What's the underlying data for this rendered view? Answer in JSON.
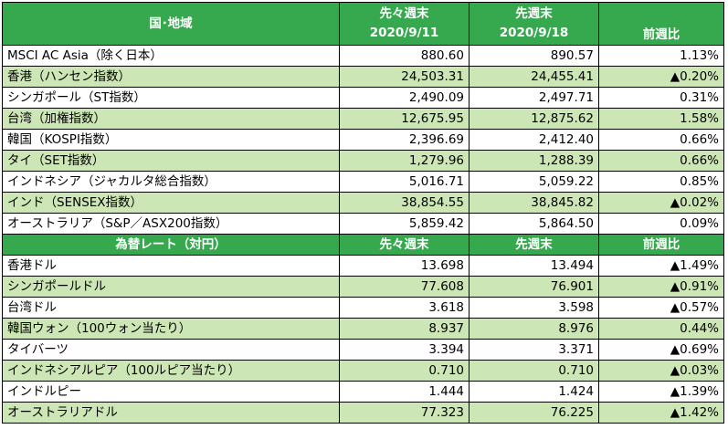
{
  "stock_section": {
    "header": {
      "name": "国･地域",
      "prev_week_label": "先々週末",
      "prev_week_date": "2020/9/11",
      "this_week_label": "先週末",
      "this_week_date": "2020/9/18",
      "change_label": "前週比"
    },
    "rows": [
      {
        "name": "MSCI AC Asia（除く日本）",
        "prev": "880.60",
        "curr": "890.57",
        "change": "1.13%",
        "rise": false,
        "shaded": false
      },
      {
        "name": "香港（ハンセン指数）",
        "prev": "24,503.31",
        "curr": "24,455.41",
        "change": "▲0.20%",
        "rise": true,
        "shaded": true
      },
      {
        "name": "シンガポール（ST指数）",
        "prev": "2,490.09",
        "curr": "2,497.71",
        "change": "0.31%",
        "rise": false,
        "shaded": false
      },
      {
        "name": "台湾（加権指数）",
        "prev": "12,675.95",
        "curr": "12,875.62",
        "change": "1.58%",
        "rise": false,
        "shaded": true
      },
      {
        "name": "韓国（KOSPI指数）",
        "prev": "2,396.69",
        "curr": "2,412.40",
        "change": "0.66%",
        "rise": false,
        "shaded": false
      },
      {
        "name": "タイ（SET指数）",
        "prev": "1,279.96",
        "curr": "1,288.39",
        "change": "0.66%",
        "rise": false,
        "shaded": true
      },
      {
        "name": "インドネシア（ジャカルタ総合指数）",
        "prev": "5,016.71",
        "curr": "5,059.22",
        "change": "0.85%",
        "rise": false,
        "shaded": false
      },
      {
        "name": "インド（SENSEX指数）",
        "prev": "38,854.55",
        "curr": "38,845.82",
        "change": "▲0.02%",
        "rise": true,
        "shaded": true
      },
      {
        "name": "オーストラリア（S&P／ASX200指数）",
        "prev": "5,859.42",
        "curr": "5,864.50",
        "change": "0.09%",
        "rise": false,
        "shaded": false
      }
    ]
  },
  "fx_section": {
    "header": {
      "name": "為替レート（対円）",
      "prev_week_label": "先々週末",
      "this_week_label": "先週末",
      "change_label": "前週比"
    },
    "rows": [
      {
        "name": "香港ドル",
        "prev": "13.698",
        "curr": "13.494",
        "change": "▲1.49%",
        "rise": true,
        "shaded": false
      },
      {
        "name": "シンガポールドル",
        "prev": "77.608",
        "curr": "76.901",
        "change": "▲0.91%",
        "rise": true,
        "shaded": true
      },
      {
        "name": "台湾ドル",
        "prev": "3.618",
        "curr": "3.598",
        "change": "▲0.57%",
        "rise": true,
        "shaded": false
      },
      {
        "name": "韓国ウォン（100ウォン当たり）",
        "prev": "8.937",
        "curr": "8.976",
        "change": "0.44%",
        "rise": false,
        "shaded": true
      },
      {
        "name": "タイバーツ",
        "prev": "3.394",
        "curr": "3.371",
        "change": "▲0.69%",
        "rise": true,
        "shaded": false
      },
      {
        "name": "インドネシアルピア（100ルピア当たり）",
        "prev": "0.710",
        "curr": "0.710",
        "change": "▲0.03%",
        "rise": true,
        "shaded": true
      },
      {
        "name": "インドルピー",
        "prev": "1.444",
        "curr": "1.424",
        "change": "▲1.39%",
        "rise": true,
        "shaded": false
      },
      {
        "name": "オーストラリアドル",
        "prev": "77.323",
        "curr": "76.225",
        "change": "▲1.42%",
        "rise": true,
        "shaded": true
      }
    ]
  },
  "colors": {
    "header_green": "#36a94f",
    "shaded_row": "#cde6b5",
    "decline_red": "#e0001b"
  }
}
